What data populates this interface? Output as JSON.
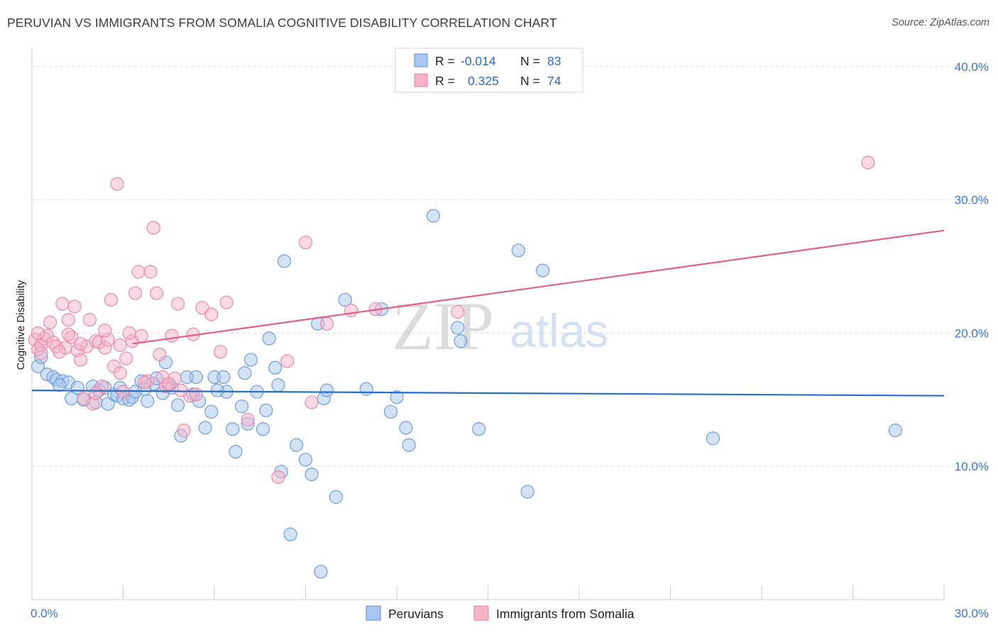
{
  "title": "PERUVIAN VS IMMIGRANTS FROM SOMALIA COGNITIVE DISABILITY CORRELATION CHART",
  "source": "Source: ZipAtlas.com",
  "watermark": {
    "zip": "ZIP",
    "atlas": "atlas"
  },
  "colors": {
    "blue": "#2b6ec8",
    "blue_fill": "#aac6ee",
    "pink": "#e0608e",
    "pink_fill": "#f4b4c8",
    "grid": "#d8d8d8",
    "tick": "#3f78c6"
  },
  "legend": {
    "rows": [
      {
        "r_label": "R =",
        "r_value": "-0.014",
        "n_label": "N =",
        "n_value": "83"
      },
      {
        "r_label": "R =",
        "r_value": "0.325",
        "n_label": "N =",
        "n_value": "74"
      }
    ]
  },
  "chart_data": {
    "type": "scatter",
    "title": "PERUVIAN VS IMMIGRANTS FROM SOMALIA COGNITIVE DISABILITY CORRELATION CHART",
    "xlabel": "",
    "ylabel": "Cognitive Disability",
    "xlim": [
      0,
      30
    ],
    "ylim": [
      0,
      41
    ],
    "x_tick_labels": [
      "0.0%",
      "30.0%"
    ],
    "y_ticks": [
      10,
      20,
      30,
      40
    ],
    "y_tick_labels": [
      "10.0%",
      "20.0%",
      "30.0%",
      "40.0%"
    ],
    "legend_position": "top-center",
    "series": [
      {
        "name": "Peruvians",
        "R": -0.014,
        "N": 83,
        "trend": {
          "x": [
            0,
            30
          ],
          "y": [
            15.7,
            15.3
          ]
        },
        "points": [
          {
            "x": 0.2,
            "y": 17.5
          },
          {
            "x": 0.3,
            "y": 18.2
          },
          {
            "x": 0.5,
            "y": 16.9
          },
          {
            "x": 0.7,
            "y": 16.7
          },
          {
            "x": 0.8,
            "y": 16.5
          },
          {
            "x": 1.0,
            "y": 16.4
          },
          {
            "x": 1.2,
            "y": 16.3
          },
          {
            "x": 1.3,
            "y": 15.1
          },
          {
            "x": 1.5,
            "y": 15.9
          },
          {
            "x": 1.7,
            "y": 15.0
          },
          {
            "x": 2.1,
            "y": 14.8
          },
          {
            "x": 2.2,
            "y": 15.7
          },
          {
            "x": 2.4,
            "y": 15.9
          },
          {
            "x": 2.5,
            "y": 14.7
          },
          {
            "x": 2.7,
            "y": 15.4
          },
          {
            "x": 2.8,
            "y": 15.3
          },
          {
            "x": 2.9,
            "y": 15.9
          },
          {
            "x": 3.0,
            "y": 15.1
          },
          {
            "x": 3.2,
            "y": 15.0
          },
          {
            "x": 3.3,
            "y": 15.2
          },
          {
            "x": 3.4,
            "y": 15.6
          },
          {
            "x": 3.6,
            "y": 16.4
          },
          {
            "x": 3.8,
            "y": 14.9
          },
          {
            "x": 4.0,
            "y": 16.2
          },
          {
            "x": 4.1,
            "y": 16.6
          },
          {
            "x": 4.3,
            "y": 15.5
          },
          {
            "x": 4.4,
            "y": 17.8
          },
          {
            "x": 4.5,
            "y": 16.1
          },
          {
            "x": 4.8,
            "y": 14.6
          },
          {
            "x": 4.9,
            "y": 12.3
          },
          {
            "x": 5.1,
            "y": 16.7
          },
          {
            "x": 5.3,
            "y": 15.4
          },
          {
            "x": 5.4,
            "y": 16.7
          },
          {
            "x": 5.5,
            "y": 14.9
          },
          {
            "x": 5.7,
            "y": 12.9
          },
          {
            "x": 5.9,
            "y": 14.1
          },
          {
            "x": 6.0,
            "y": 16.7
          },
          {
            "x": 6.3,
            "y": 16.7
          },
          {
            "x": 6.4,
            "y": 15.6
          },
          {
            "x": 6.6,
            "y": 12.8
          },
          {
            "x": 6.7,
            "y": 11.1
          },
          {
            "x": 6.9,
            "y": 14.5
          },
          {
            "x": 7.0,
            "y": 17.0
          },
          {
            "x": 7.1,
            "y": 13.2
          },
          {
            "x": 7.2,
            "y": 18.0
          },
          {
            "x": 7.4,
            "y": 15.6
          },
          {
            "x": 7.6,
            "y": 12.8
          },
          {
            "x": 7.7,
            "y": 14.2
          },
          {
            "x": 7.8,
            "y": 19.6
          },
          {
            "x": 8.0,
            "y": 17.4
          },
          {
            "x": 8.1,
            "y": 16.1
          },
          {
            "x": 8.2,
            "y": 9.6
          },
          {
            "x": 8.3,
            "y": 25.4
          },
          {
            "x": 8.5,
            "y": 4.9
          },
          {
            "x": 8.7,
            "y": 11.6
          },
          {
            "x": 9.0,
            "y": 10.5
          },
          {
            "x": 9.2,
            "y": 9.4
          },
          {
            "x": 9.4,
            "y": 20.7
          },
          {
            "x": 9.5,
            "y": 2.1
          },
          {
            "x": 9.6,
            "y": 15.1
          },
          {
            "x": 9.7,
            "y": 15.7
          },
          {
            "x": 10.0,
            "y": 7.7
          },
          {
            "x": 10.3,
            "y": 22.5
          },
          {
            "x": 11.0,
            "y": 15.8
          },
          {
            "x": 11.5,
            "y": 21.8
          },
          {
            "x": 11.8,
            "y": 14.1
          },
          {
            "x": 12.0,
            "y": 15.2
          },
          {
            "x": 12.3,
            "y": 12.9
          },
          {
            "x": 12.4,
            "y": 11.6
          },
          {
            "x": 13.2,
            "y": 28.8
          },
          {
            "x": 14.0,
            "y": 20.4
          },
          {
            "x": 14.1,
            "y": 19.4
          },
          {
            "x": 14.7,
            "y": 12.8
          },
          {
            "x": 16.0,
            "y": 26.2
          },
          {
            "x": 16.3,
            "y": 8.1
          },
          {
            "x": 16.8,
            "y": 24.7
          },
          {
            "x": 22.4,
            "y": 12.1
          },
          {
            "x": 28.4,
            "y": 12.7
          },
          {
            "x": 0.9,
            "y": 16.1
          },
          {
            "x": 2.0,
            "y": 16.0
          },
          {
            "x": 3.7,
            "y": 15.8
          },
          {
            "x": 4.6,
            "y": 15.9
          },
          {
            "x": 6.1,
            "y": 15.7
          }
        ]
      },
      {
        "name": "Immigrants from Somalia",
        "R": 0.325,
        "N": 74,
        "trend": {
          "x": [
            3.3,
            30
          ],
          "y": [
            19.2,
            27.7
          ]
        },
        "points": [
          {
            "x": 0.1,
            "y": 19.5
          },
          {
            "x": 0.2,
            "y": 18.8
          },
          {
            "x": 0.3,
            "y": 19.1
          },
          {
            "x": 0.4,
            "y": 19.6
          },
          {
            "x": 0.5,
            "y": 19.8
          },
          {
            "x": 0.6,
            "y": 20.8
          },
          {
            "x": 0.7,
            "y": 19.3
          },
          {
            "x": 0.8,
            "y": 19.0
          },
          {
            "x": 1.0,
            "y": 22.2
          },
          {
            "x": 1.1,
            "y": 18.9
          },
          {
            "x": 1.2,
            "y": 21.0
          },
          {
            "x": 1.3,
            "y": 19.7
          },
          {
            "x": 1.4,
            "y": 22.0
          },
          {
            "x": 1.5,
            "y": 18.7
          },
          {
            "x": 1.6,
            "y": 18.0
          },
          {
            "x": 1.7,
            "y": 15.1
          },
          {
            "x": 1.8,
            "y": 19.0
          },
          {
            "x": 1.9,
            "y": 21.0
          },
          {
            "x": 2.0,
            "y": 14.7
          },
          {
            "x": 2.1,
            "y": 19.4
          },
          {
            "x": 2.2,
            "y": 19.3
          },
          {
            "x": 2.3,
            "y": 16.0
          },
          {
            "x": 2.4,
            "y": 18.9
          },
          {
            "x": 2.5,
            "y": 19.5
          },
          {
            "x": 2.6,
            "y": 22.5
          },
          {
            "x": 2.7,
            "y": 17.5
          },
          {
            "x": 2.8,
            "y": 31.2
          },
          {
            "x": 2.9,
            "y": 17.0
          },
          {
            "x": 3.0,
            "y": 15.6
          },
          {
            "x": 3.1,
            "y": 18.1
          },
          {
            "x": 3.3,
            "y": 19.4
          },
          {
            "x": 3.4,
            "y": 23.0
          },
          {
            "x": 3.5,
            "y": 24.6
          },
          {
            "x": 3.6,
            "y": 19.8
          },
          {
            "x": 3.8,
            "y": 16.4
          },
          {
            "x": 3.9,
            "y": 24.6
          },
          {
            "x": 4.0,
            "y": 27.9
          },
          {
            "x": 4.1,
            "y": 23.0
          },
          {
            "x": 4.2,
            "y": 18.4
          },
          {
            "x": 4.4,
            "y": 16.0
          },
          {
            "x": 4.6,
            "y": 19.8
          },
          {
            "x": 4.7,
            "y": 16.6
          },
          {
            "x": 4.8,
            "y": 22.2
          },
          {
            "x": 5.0,
            "y": 12.7
          },
          {
            "x": 5.2,
            "y": 15.3
          },
          {
            "x": 5.4,
            "y": 15.4
          },
          {
            "x": 5.6,
            "y": 21.9
          },
          {
            "x": 5.9,
            "y": 21.4
          },
          {
            "x": 6.4,
            "y": 22.3
          },
          {
            "x": 7.1,
            "y": 13.5
          },
          {
            "x": 8.1,
            "y": 9.2
          },
          {
            "x": 8.4,
            "y": 17.9
          },
          {
            "x": 9.0,
            "y": 26.8
          },
          {
            "x": 9.2,
            "y": 14.8
          },
          {
            "x": 9.7,
            "y": 20.7
          },
          {
            "x": 10.5,
            "y": 21.7
          },
          {
            "x": 11.3,
            "y": 21.8
          },
          {
            "x": 14.0,
            "y": 21.6
          },
          {
            "x": 27.5,
            "y": 32.8
          },
          {
            "x": 0.3,
            "y": 18.5
          },
          {
            "x": 0.9,
            "y": 18.6
          },
          {
            "x": 1.6,
            "y": 19.2
          },
          {
            "x": 2.1,
            "y": 15.5
          },
          {
            "x": 2.9,
            "y": 19.1
          },
          {
            "x": 3.7,
            "y": 16.3
          },
          {
            "x": 4.3,
            "y": 16.7
          },
          {
            "x": 4.9,
            "y": 15.7
          },
          {
            "x": 5.3,
            "y": 19.9
          },
          {
            "x": 6.2,
            "y": 18.6
          },
          {
            "x": 0.2,
            "y": 20.0
          },
          {
            "x": 1.2,
            "y": 19.9
          },
          {
            "x": 2.4,
            "y": 20.2
          },
          {
            "x": 3.2,
            "y": 20.0
          },
          {
            "x": 4.5,
            "y": 16.2
          }
        ]
      }
    ]
  },
  "bottom_legend": [
    {
      "label": "Peruvians"
    },
    {
      "label": "Immigrants from Somalia"
    }
  ]
}
